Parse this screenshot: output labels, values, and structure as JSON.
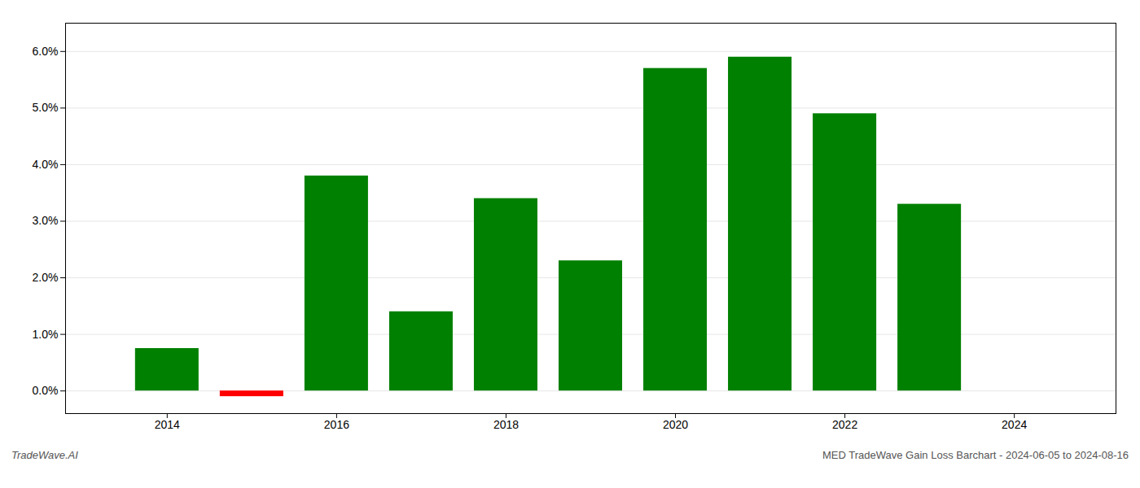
{
  "chart_data": {
    "type": "bar",
    "title": "MED TradeWave Gain Loss Barchart - 2024-06-05 to 2024-08-16",
    "annotations": [
      "TradeWave.AI"
    ],
    "x": [
      2014,
      2015,
      2016,
      2017,
      2018,
      2019,
      2020,
      2021,
      2022,
      2023
    ],
    "values": [
      0.0075,
      -0.001,
      0.038,
      0.014,
      0.034,
      0.023,
      0.057,
      0.059,
      0.049,
      0.033
    ],
    "colors": [
      "#008000",
      "#ff0000",
      "#008000",
      "#008000",
      "#008000",
      "#008000",
      "#008000",
      "#008000",
      "#008000",
      "#008000"
    ],
    "xlim": [
      2012.8,
      2025.2
    ],
    "xticks": [
      2014,
      2016,
      2018,
      2020,
      2022,
      2024
    ],
    "ylim": [
      -0.004,
      0.065
    ],
    "yticks": [
      {
        "value": 0,
        "label": "0.0%"
      },
      {
        "value": 0.01,
        "label": "1.0%"
      },
      {
        "value": 0.02,
        "label": "2.0%"
      },
      {
        "value": 0.03,
        "label": "3.0%"
      },
      {
        "value": 0.04,
        "label": "4.0%"
      },
      {
        "value": 0.05,
        "label": "5.0%"
      },
      {
        "value": 0.06,
        "label": "6.0%"
      }
    ],
    "grid": true
  }
}
